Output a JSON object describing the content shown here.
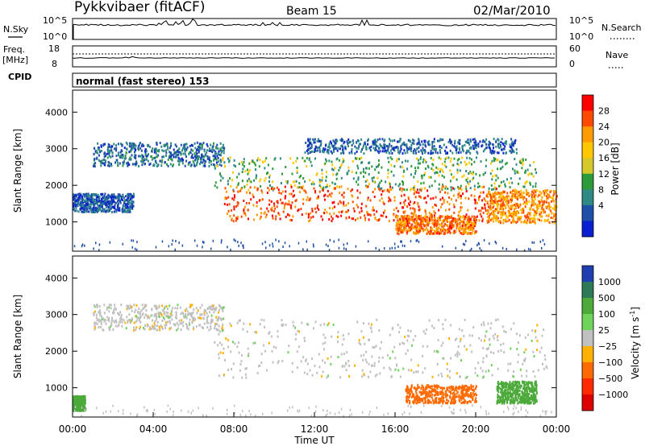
{
  "header": {
    "station": "Pykkvibaer (fitACF)",
    "beam": "Beam 15",
    "date": "02/Mar/2010"
  },
  "strips": {
    "nsky": {
      "left_label": "N.Sky",
      "left_ticks": [
        "10^5",
        "10^0"
      ],
      "right_ticks": [
        "10^5",
        "10^0"
      ],
      "right_label": "N.Search"
    },
    "freq": {
      "left_label_1": "Freq.",
      "left_label_2": "[MHz]",
      "left_ticks": [
        "18",
        "8"
      ],
      "right_ticks": [
        "60",
        "0"
      ],
      "right_label": "Nave"
    },
    "cpid": {
      "label": "CPID",
      "text": "normal (fast stereo) 153"
    }
  },
  "colorbars": {
    "power": {
      "label": "Power [dB]",
      "ticks": [
        "28",
        "24",
        "20",
        "16",
        "12",
        "8",
        "4"
      ],
      "colors": [
        "#ff0000",
        "#ff4a00",
        "#ff9a00",
        "#ffc700",
        "#d6c72a",
        "#2e9b3a",
        "#2f8a86",
        "#1f4fa8",
        "#0a1fd0"
      ]
    },
    "velocity": {
      "label_main": "Velocity [m s",
      "label_exp": "-1",
      "label_end": "]",
      "ticks": [
        "1000",
        "500",
        "100",
        "25",
        "−25",
        "−100",
        "−500",
        "−1000"
      ],
      "colors": [
        "#1f3fb0",
        "#2e7a58",
        "#4caa3a",
        "#6fd25a",
        "#c0c0c0",
        "#ffb000",
        "#ff6a00",
        "#ff2a00",
        "#dd0000"
      ]
    }
  },
  "chart_data": [
    {
      "type": "heatmap",
      "title": "",
      "ylabel": "Slant Range [km]",
      "xlabel": "",
      "x_ticks": [
        "00:00",
        "04:00",
        "08:00",
        "12:00",
        "16:00",
        "20:00",
        "00:00"
      ],
      "y_ticks": [
        1000,
        2000,
        3000,
        4000
      ],
      "xlim_hours": [
        0,
        24
      ],
      "ylim": [
        200,
        4600
      ],
      "value_label": "Power [dB]",
      "scatter_regions": [
        {
          "t": [
            1.0,
            7.5
          ],
          "range": [
            2550,
            3200
          ],
          "value": 8
        },
        {
          "t": [
            7.0,
            23.0
          ],
          "range": [
            1900,
            2800
          ],
          "value": 14
        },
        {
          "t": [
            7.5,
            21.0
          ],
          "range": [
            1050,
            2000
          ],
          "value": 26
        },
        {
          "t": [
            16.0,
            20.0
          ],
          "range": [
            700,
            1200
          ],
          "value": 24
        },
        {
          "t": [
            20.5,
            24.0
          ],
          "range": [
            1000,
            1900
          ],
          "value": 22
        },
        {
          "t": [
            11.5,
            22.0
          ],
          "range": [
            2900,
            3300
          ],
          "value": 7
        },
        {
          "t": [
            0.0,
            3.0
          ],
          "range": [
            1300,
            1800
          ],
          "value": 6
        }
      ]
    },
    {
      "type": "heatmap",
      "title": "",
      "ylabel": "Slant Range [km]",
      "xlabel": "Time UT",
      "x_ticks": [
        "00:00",
        "04:00",
        "08:00",
        "12:00",
        "16:00",
        "20:00",
        "00:00"
      ],
      "y_ticks": [
        1000,
        2000,
        3000,
        4000
      ],
      "xlim_hours": [
        0,
        24
      ],
      "ylim": [
        200,
        4600
      ],
      "value_label": "Velocity [m s^-1]",
      "scatter_regions": [
        {
          "t": [
            1.0,
            7.5
          ],
          "range": [
            2600,
            3300
          ],
          "value": 0
        },
        {
          "t": [
            7.0,
            23.5
          ],
          "range": [
            1300,
            2900
          ],
          "value": 0
        },
        {
          "t": [
            16.5,
            20.0
          ],
          "range": [
            600,
            1100
          ],
          "value": -150
        },
        {
          "t": [
            21.0,
            23.0
          ],
          "range": [
            600,
            1200
          ],
          "value": 300
        },
        {
          "t": [
            0.0,
            0.6
          ],
          "range": [
            400,
            800
          ],
          "value": 300
        }
      ]
    }
  ]
}
